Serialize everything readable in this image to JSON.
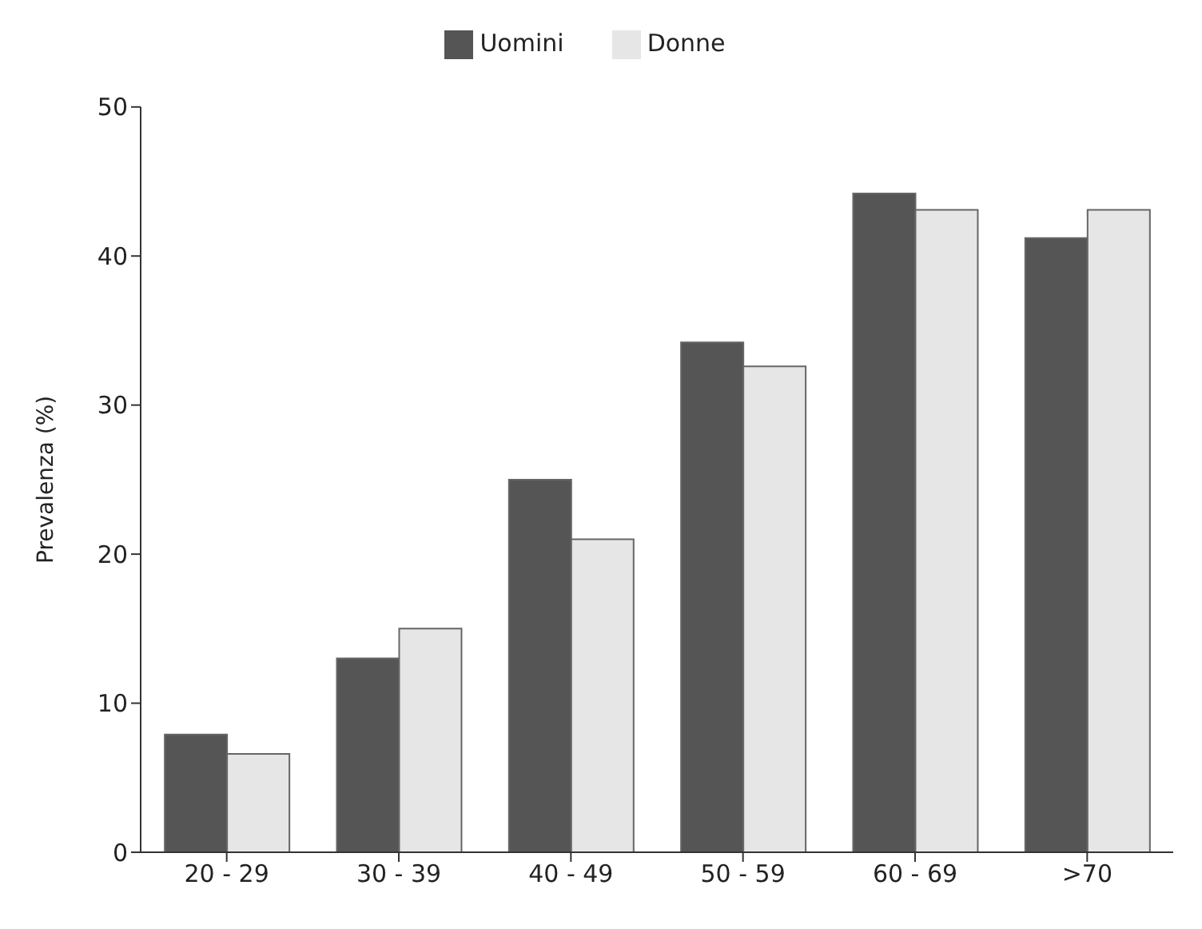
{
  "chart_data": {
    "type": "bar",
    "ylabel": "Prevalenza (%)",
    "categories": [
      "20 - 29",
      "30 - 39",
      "40 - 49",
      "50 - 59",
      "60 - 69",
      ">70"
    ],
    "series": [
      {
        "name": "Uomini",
        "color": "#555555",
        "values": [
          7.9,
          13,
          25,
          34.2,
          44.2,
          41.2
        ]
      },
      {
        "name": "Donne",
        "color": "#e6e6e6",
        "values": [
          6.6,
          15,
          21,
          32.6,
          43.1,
          43.1
        ]
      }
    ],
    "ylim": [
      0,
      50
    ],
    "yticks": [
      0,
      10,
      20,
      30,
      40,
      50
    ],
    "grid": false,
    "legend": "top"
  }
}
